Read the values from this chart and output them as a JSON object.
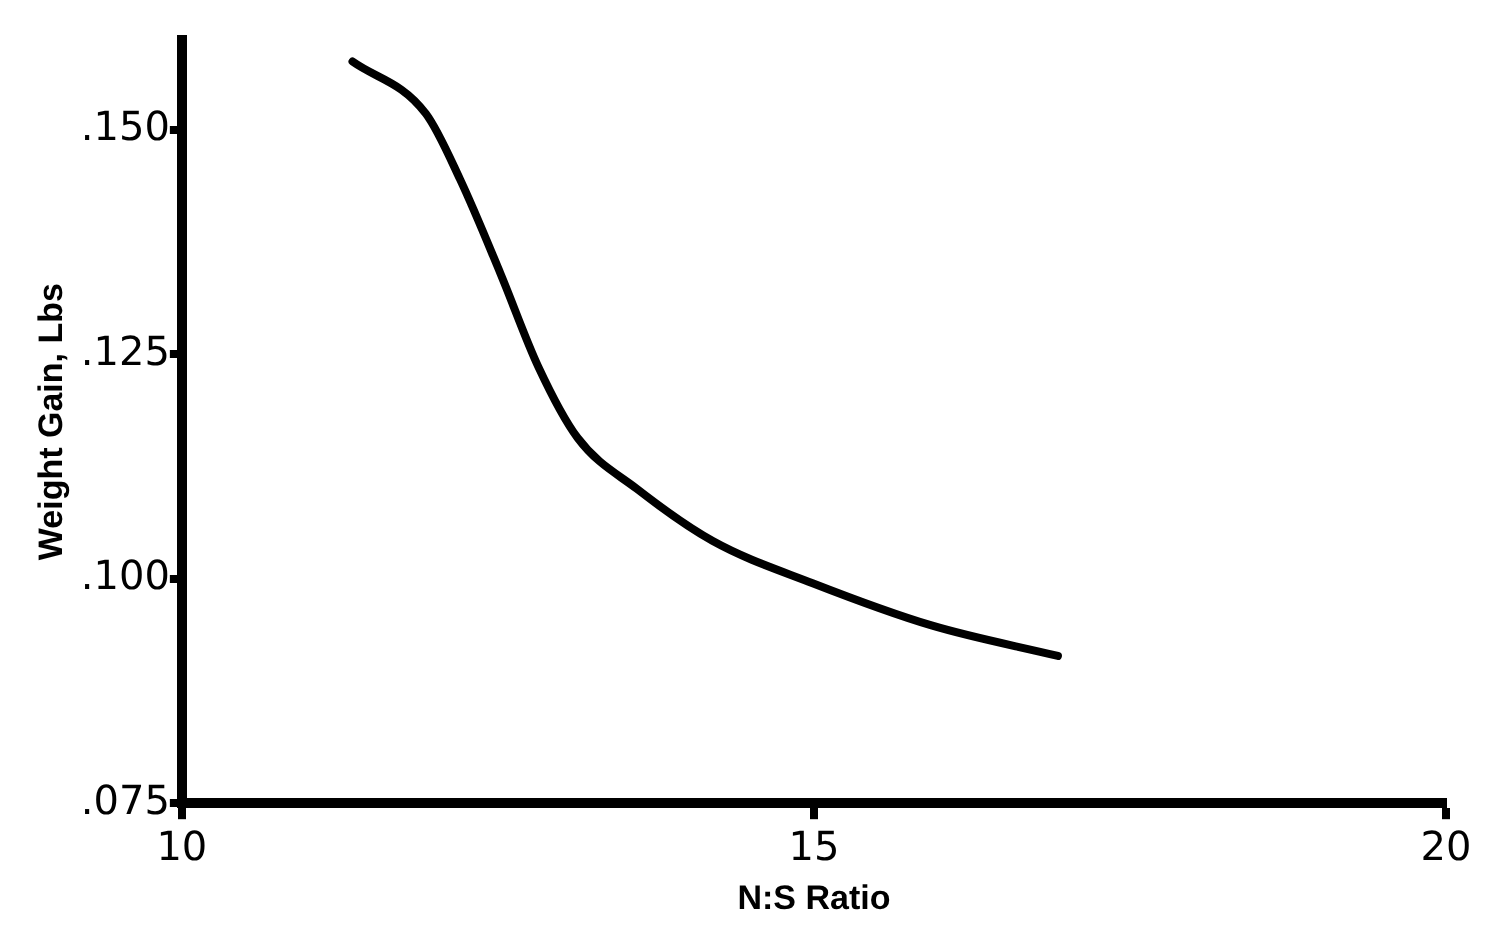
{
  "chart_data": {
    "type": "line",
    "xlabel": "N:S Ratio",
    "ylabel": "Weight Gain, Lbs",
    "x": [
      11.35,
      11.93,
      12.2,
      12.52,
      12.82,
      13.13,
      13.6,
      14.2,
      14.99,
      15.93,
      16.93
    ],
    "series": [
      {
        "color": "#000000",
        "values": [
          0.1576,
          0.1518,
          0.1445,
          0.134,
          0.1236,
          0.1157,
          0.11,
          0.1042,
          0.0995,
          0.0948,
          0.0914
        ]
      }
    ],
    "xlim": [
      10,
      20
    ],
    "xticks": [
      10,
      15,
      20
    ],
    "ylim": [
      0.075,
      0.16
    ],
    "yticks": [
      {
        "value": 0.075,
        "label": ".075"
      },
      {
        "value": 0.1,
        "label": ".100"
      },
      {
        "value": 0.125,
        "label": ".125"
      },
      {
        "value": 0.15,
        "label": ".150"
      }
    ],
    "grid": false,
    "legend": false,
    "marker": "none",
    "line_style": "solid"
  }
}
